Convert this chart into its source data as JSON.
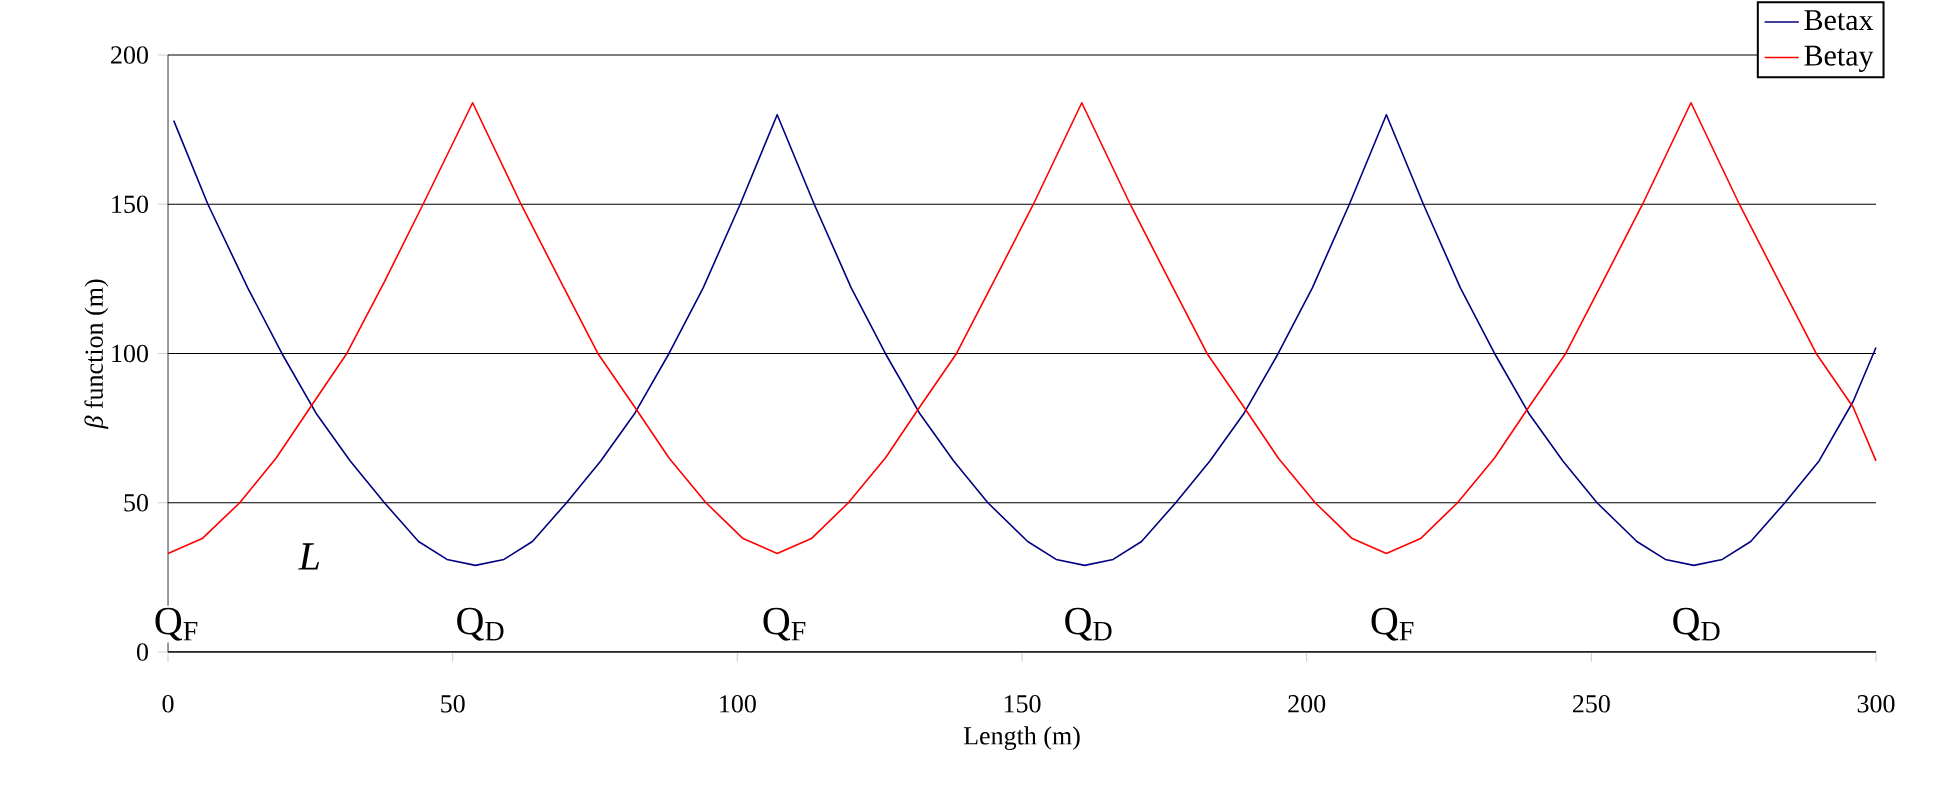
{
  "chart_data": {
    "type": "line",
    "xlabel": "Length (m)",
    "ylabel": "*β* function (m)",
    "xlim": [
      0,
      300
    ],
    "ylim": [
      0,
      200
    ],
    "xticks": [
      0,
      50,
      100,
      150,
      200,
      250,
      300
    ],
    "yticks": [
      0,
      50,
      100,
      150,
      200
    ],
    "grid": "y",
    "legend": "top right",
    "series": [
      {
        "name": "Betax",
        "color": "#000080",
        "x": [
          1,
          7,
          14,
          20,
          26,
          32,
          38,
          44,
          49,
          54,
          59,
          64,
          70,
          76,
          82,
          88,
          94,
          100.5,
          107,
          113.5,
          120,
          126,
          132,
          138,
          144,
          151,
          156,
          161,
          166,
          171,
          177,
          183,
          189,
          195,
          201,
          207.5,
          214,
          220.5,
          227,
          233,
          239,
          245,
          251,
          258,
          263,
          268,
          273,
          278,
          284,
          290,
          296,
          300
        ],
        "values": [
          178,
          150,
          122,
          100,
          80,
          64,
          50,
          37,
          31,
          29,
          31,
          37,
          50,
          64,
          80,
          100,
          122,
          150,
          180,
          150,
          122,
          100,
          80,
          64,
          50,
          37,
          31,
          29,
          31,
          37,
          50,
          64,
          80,
          100,
          122,
          150,
          180,
          150,
          122,
          100,
          80,
          64,
          50,
          37,
          31,
          29,
          31,
          37,
          50,
          64,
          84,
          102
        ]
      },
      {
        "name": "Betay",
        "color": "#ff0000",
        "x": [
          0,
          6,
          12.6,
          19,
          25,
          31.4,
          38,
          44.8,
          53.5,
          62,
          69,
          75.5,
          82,
          88,
          94.5,
          101,
          107,
          113,
          119.5,
          126,
          132,
          138.5,
          145,
          152,
          160.5,
          169,
          176,
          182.5,
          189,
          195,
          201.5,
          208,
          214,
          220,
          226.5,
          233,
          239,
          245.5,
          252,
          259,
          267.5,
          276,
          283,
          289.5,
          296,
          300
        ],
        "values": [
          33,
          38,
          50,
          65,
          82,
          100,
          124,
          150,
          184,
          150,
          124,
          100,
          82,
          65,
          50,
          38,
          33,
          38,
          50,
          65,
          82,
          100,
          124,
          150,
          184,
          150,
          124,
          100,
          82,
          65,
          50,
          38,
          33,
          38,
          50,
          65,
          82,
          100,
          124,
          150,
          184,
          150,
          124,
          100,
          82,
          64
        ]
      }
    ],
    "annotations": [
      "Q$_{F}$",
      "Q$_{D}$",
      "Q$_{F}$",
      "Q$_{D}$",
      "Q$_{F}$",
      "Q$_{D}$",
      "*L*"
    ]
  }
}
